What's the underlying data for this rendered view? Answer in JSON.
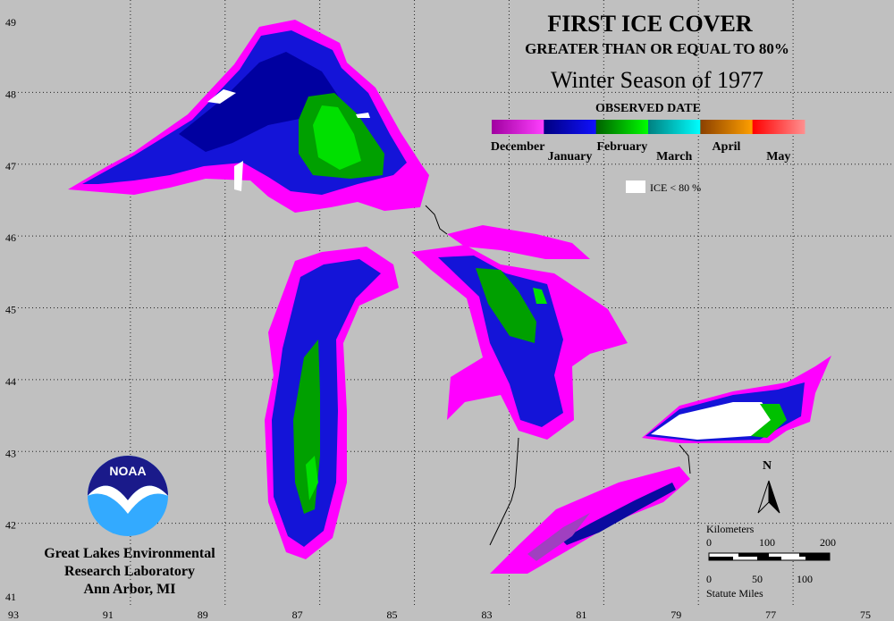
{
  "title": "FIRST ICE COVER",
  "subtitle": "GREATER THAN OR EQUAL TO 80%",
  "season": "Winter Season of 1977",
  "legend": {
    "title": "OBSERVED DATE",
    "months": [
      "December",
      "January",
      "February",
      "March",
      "April",
      "May"
    ],
    "ice_label": "ICE < 80 %"
  },
  "grid": {
    "longitudes": [
      93,
      91,
      89,
      87,
      85,
      83,
      81,
      79,
      77,
      75
    ],
    "latitudes": [
      49,
      48,
      47,
      46,
      45,
      44,
      43,
      42,
      41
    ]
  },
  "scale": {
    "km_title": "Kilometers",
    "km_labels": [
      "0",
      "100",
      "200"
    ],
    "mile_labels": [
      "0",
      "50",
      "100"
    ],
    "mile_title": "Statute Miles"
  },
  "north": "N",
  "logo": "NOAA",
  "lab": [
    "Great Lakes Environmental",
    "Research Laboratory",
    "Ann Arbor, MI"
  ]
}
